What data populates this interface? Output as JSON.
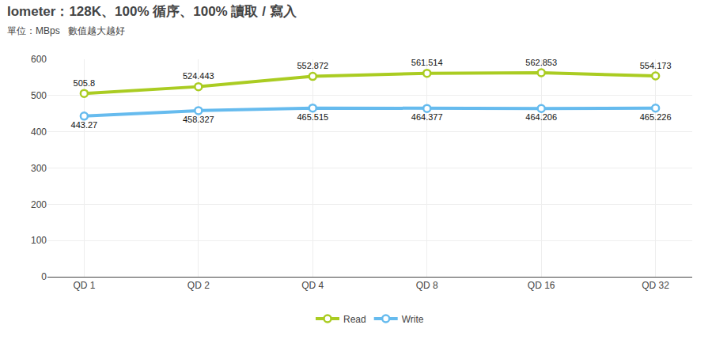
{
  "chart_data": {
    "type": "line",
    "title": "Iometer：128K、100% 循序、100% 讀取 / 寫入",
    "subtitle": "單位：MBps   數值越大越好",
    "categories": [
      "QD 1",
      "QD 2",
      "QD 4",
      "QD 8",
      "QD 16",
      "QD 32"
    ],
    "series": [
      {
        "name": "Read",
        "color": "#aacc22",
        "values": [
          505.8,
          524.443,
          552.872,
          561.514,
          562.853,
          554.173
        ]
      },
      {
        "name": "Write",
        "color": "#66bbee",
        "values": [
          443.27,
          458.327,
          465.515,
          464.377,
          464.206,
          465.226
        ]
      }
    ],
    "ylim": [
      0,
      600
    ],
    "yticks": [
      0,
      100,
      200,
      300,
      400,
      500,
      600
    ],
    "grid": true,
    "data_labels": true,
    "marker": "circle",
    "legend": "bottom"
  }
}
